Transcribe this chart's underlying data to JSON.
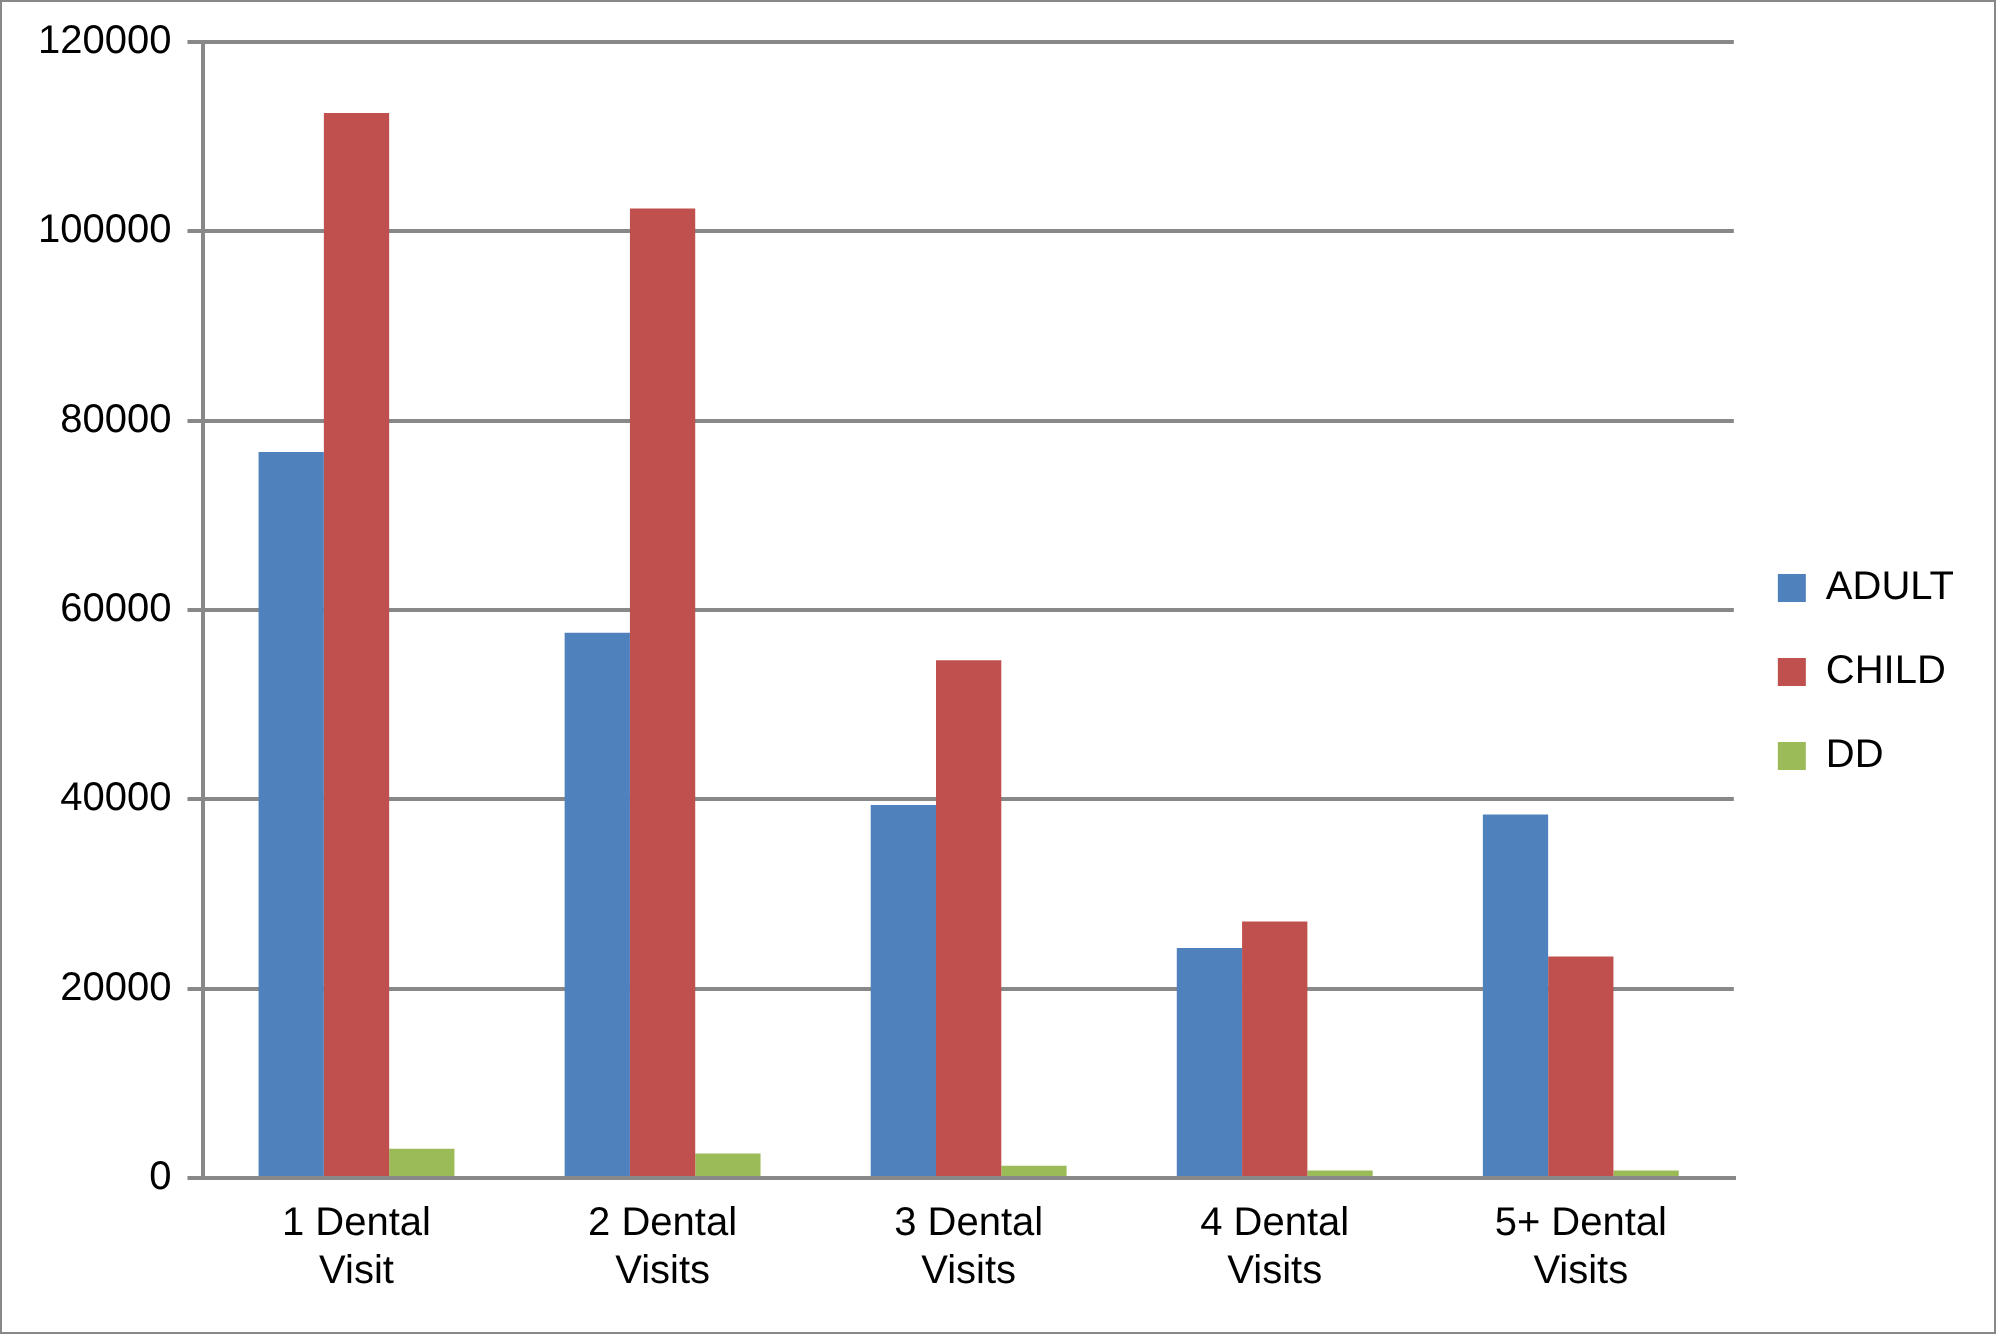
{
  "chart_data": {
    "type": "bar",
    "categories": [
      "1 Dental Visit",
      "2 Dental Visits",
      "3 Dental Visits",
      "4 Dental Visits",
      "5+ Dental Visits"
    ],
    "series": [
      {
        "name": "ADULT",
        "color": "#4f81bd",
        "values": [
          76700,
          57600,
          39400,
          24300,
          38400
        ]
      },
      {
        "name": "CHILD",
        "color": "#c0504d",
        "values": [
          112500,
          102400,
          54700,
          27100,
          23400
        ]
      },
      {
        "name": "DD",
        "color": "#9bbb59",
        "values": [
          3100,
          2600,
          1300,
          800,
          800
        ]
      }
    ],
    "ylim": [
      0,
      120000
    ],
    "yticks": [
      0,
      20000,
      40000,
      60000,
      80000,
      100000,
      120000
    ],
    "grid": "y",
    "legend": "right"
  }
}
